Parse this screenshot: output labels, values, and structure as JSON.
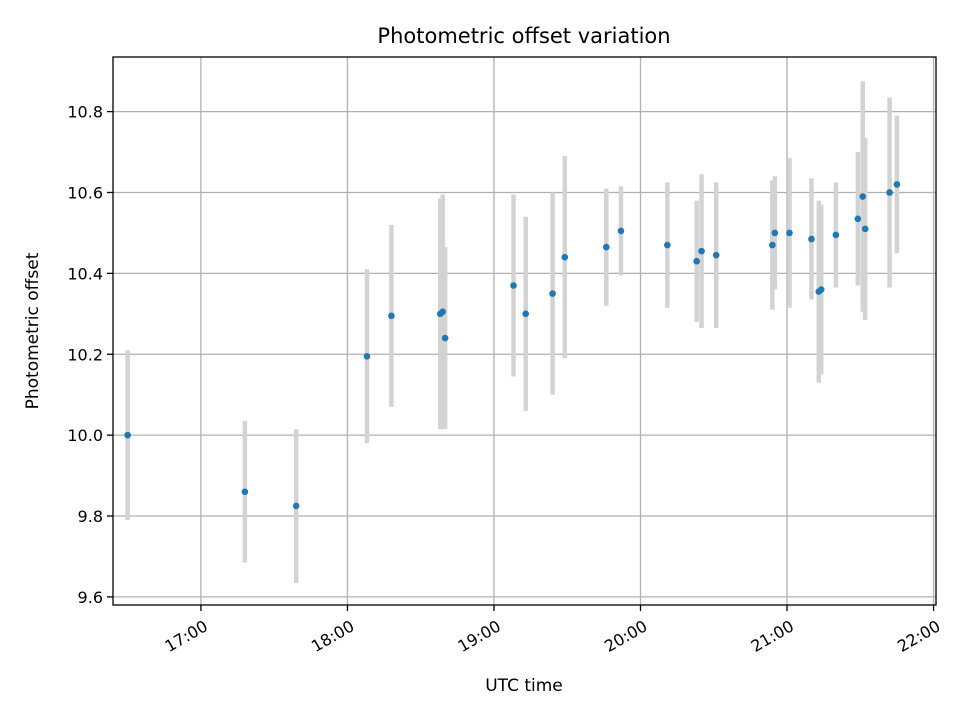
{
  "chart_data": {
    "type": "scatter",
    "title": "Photometric offset variation",
    "xlabel": "UTC time",
    "ylabel": "Photometric offset",
    "x_axis_type": "time",
    "xlim": [
      "16:24",
      "22:01"
    ],
    "ylim": [
      9.58,
      10.935
    ],
    "x_ticks": [
      "17:00",
      "18:00",
      "19:00",
      "20:00",
      "21:00",
      "22:00"
    ],
    "y_ticks": [
      9.6,
      9.8,
      10.0,
      10.2,
      10.4,
      10.6,
      10.8
    ],
    "grid": true,
    "marker_color": "#1f77b4",
    "errorbar_color": "#d3d3d3",
    "points": [
      {
        "t": "16:30",
        "y": 10.0,
        "err": 0.21
      },
      {
        "t": "17:18",
        "y": 9.86,
        "err": 0.175
      },
      {
        "t": "17:39",
        "y": 9.825,
        "err": 0.19
      },
      {
        "t": "18:08",
        "y": 10.195,
        "err": 0.215
      },
      {
        "t": "18:18",
        "y": 10.295,
        "err": 0.225
      },
      {
        "t": "18:38",
        "y": 10.3,
        "err": 0.285
      },
      {
        "t": "18:39",
        "y": 10.305,
        "err": 0.29
      },
      {
        "t": "18:40",
        "y": 10.24,
        "err": 0.225
      },
      {
        "t": "19:08",
        "y": 10.37,
        "err": 0.225
      },
      {
        "t": "19:13",
        "y": 10.3,
        "err": 0.24
      },
      {
        "t": "19:24",
        "y": 10.35,
        "err": 0.25
      },
      {
        "t": "19:29",
        "y": 10.44,
        "err": 0.25
      },
      {
        "t": "19:46",
        "y": 10.465,
        "err": 0.145
      },
      {
        "t": "19:52",
        "y": 10.505,
        "err": 0.11
      },
      {
        "t": "20:11",
        "y": 10.47,
        "err": 0.155
      },
      {
        "t": "20:23",
        "y": 10.43,
        "err": 0.15
      },
      {
        "t": "20:25",
        "y": 10.455,
        "err": 0.19
      },
      {
        "t": "20:31",
        "y": 10.445,
        "err": 0.18
      },
      {
        "t": "20:54",
        "y": 10.47,
        "err": 0.16
      },
      {
        "t": "20:55",
        "y": 10.5,
        "err": 0.14
      },
      {
        "t": "21:01",
        "y": 10.5,
        "err": 0.185
      },
      {
        "t": "21:10",
        "y": 10.485,
        "err": 0.15
      },
      {
        "t": "21:13",
        "y": 10.355,
        "err": 0.225
      },
      {
        "t": "21:14",
        "y": 10.36,
        "err": 0.21
      },
      {
        "t": "21:20",
        "y": 10.495,
        "err": 0.13
      },
      {
        "t": "21:29",
        "y": 10.535,
        "err": 0.165
      },
      {
        "t": "21:31",
        "y": 10.59,
        "err": 0.285
      },
      {
        "t": "21:32",
        "y": 10.51,
        "err": 0.225
      },
      {
        "t": "21:42",
        "y": 10.6,
        "err": 0.235
      },
      {
        "t": "21:45",
        "y": 10.62,
        "err": 0.17
      }
    ]
  }
}
